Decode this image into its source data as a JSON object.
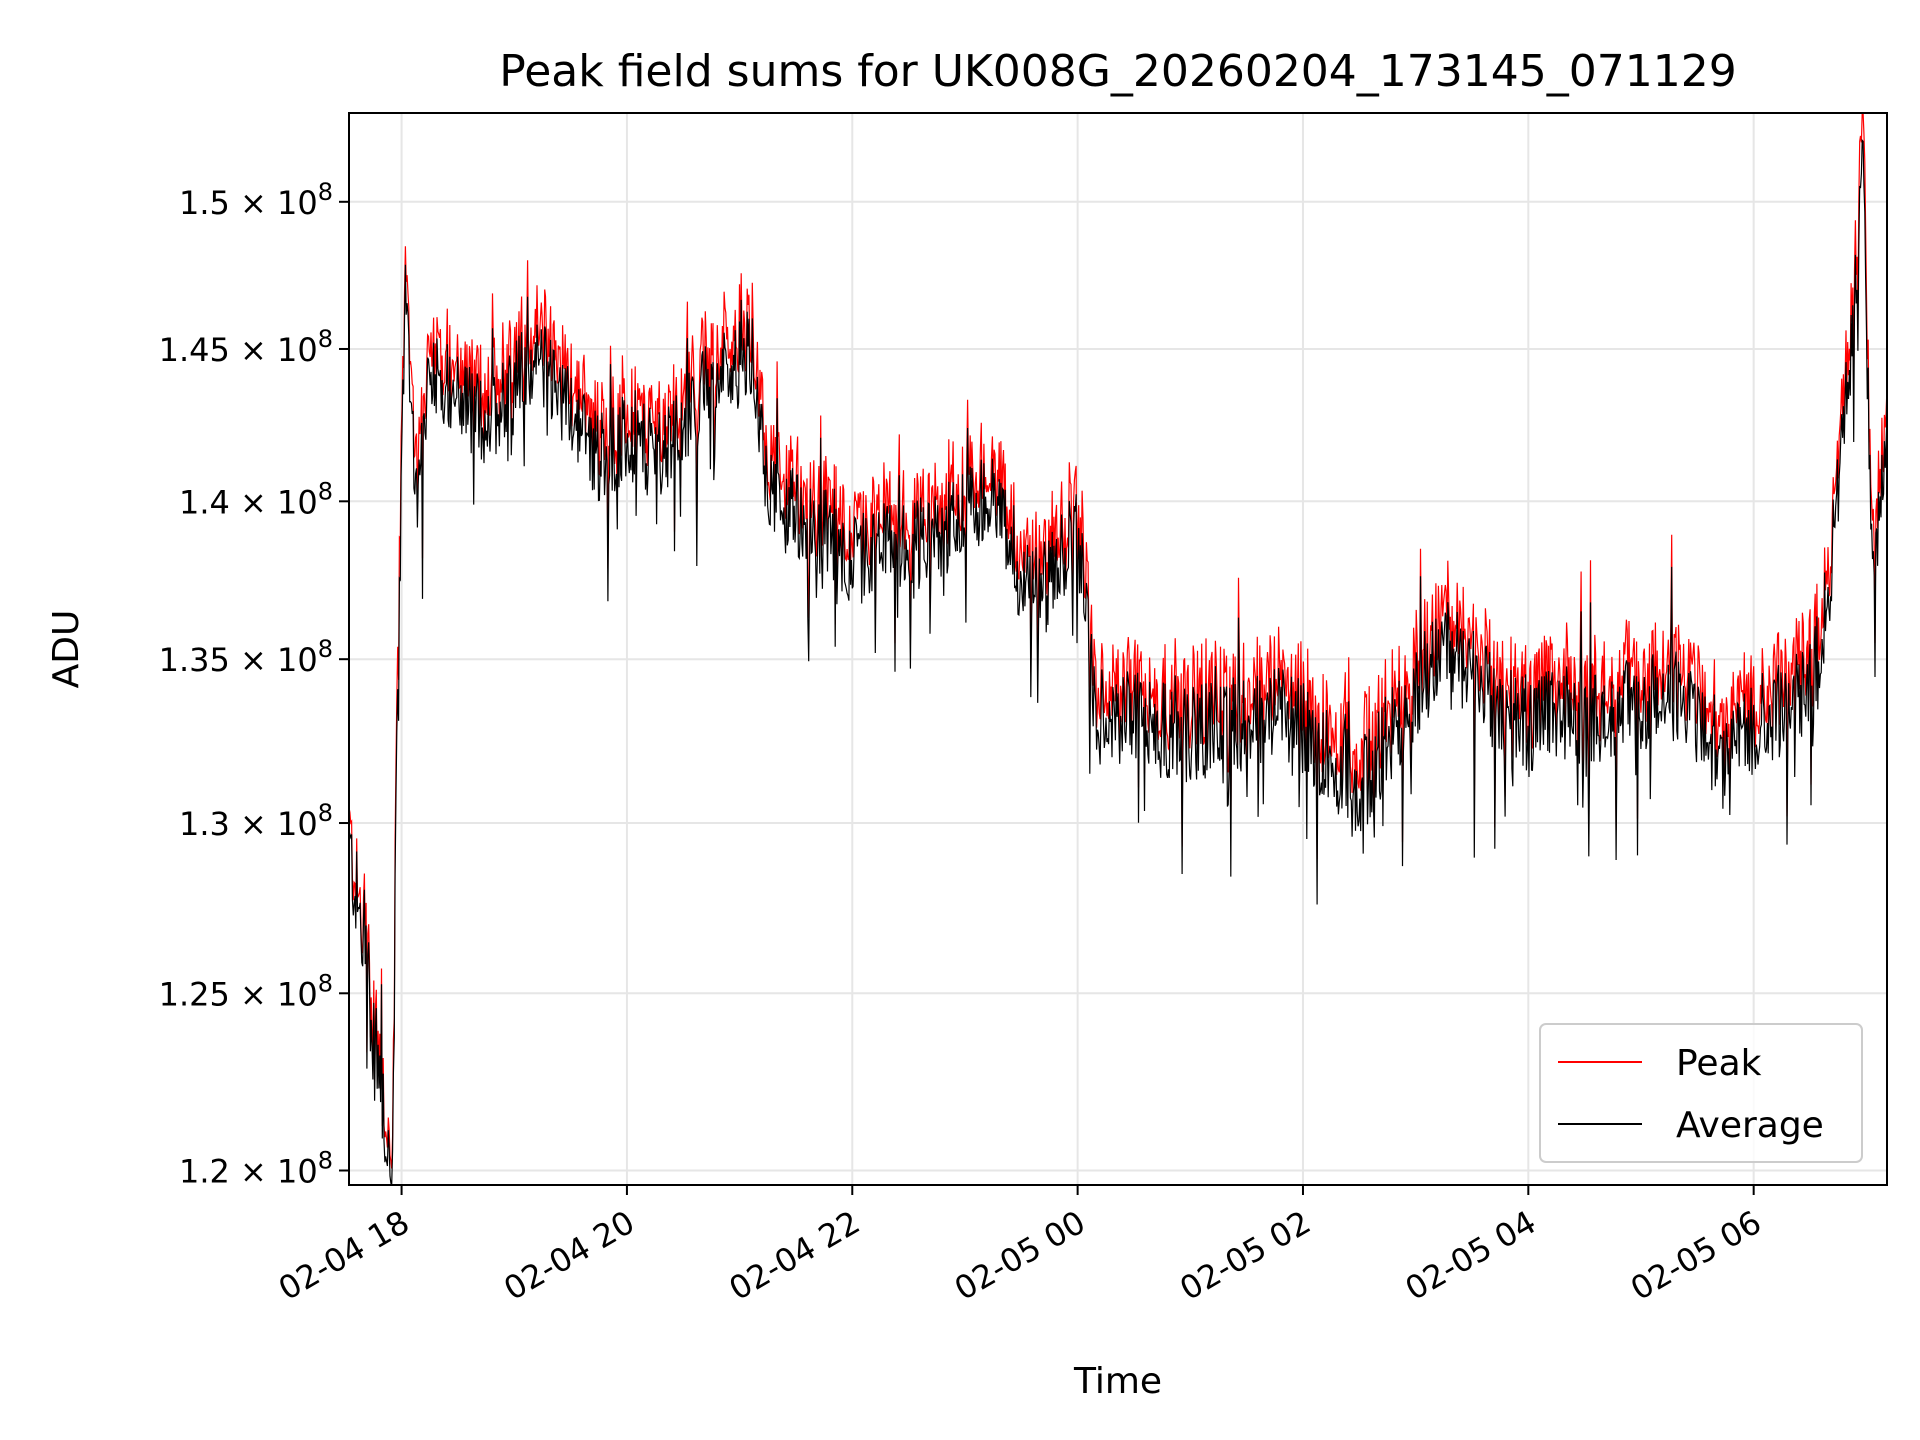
{
  "chart_data": {
    "type": "line",
    "title": "Peak field sums for UK008G_20260204_173145_071129",
    "xlabel": "Time",
    "ylabel": "ADU",
    "y_scale": "log",
    "xlim": [
      "2026-02-04T17:32",
      "2026-02-05T07:11"
    ],
    "ylim": [
      119600000,
      153100000
    ],
    "x_ticks": [
      "2026-02-04T18:00",
      "2026-02-04T20:00",
      "2026-02-04T22:00",
      "2026-02-05T00:00",
      "2026-02-05T02:00",
      "2026-02-05T04:00",
      "2026-02-05T06:00"
    ],
    "x_tick_labels": [
      "02-04 18",
      "02-04 20",
      "02-04 22",
      "02-05 00",
      "02-05 02",
      "02-05 04",
      "02-05 06"
    ],
    "y_ticks": [
      120000000,
      125000000,
      130000000,
      135000000,
      140000000,
      145000000,
      150000000
    ],
    "y_tick_labels": [
      {
        "mantissa": "1.2",
        "exponent": "8"
      },
      {
        "mantissa": "1.25",
        "exponent": "8"
      },
      {
        "mantissa": "1.3",
        "exponent": "8"
      },
      {
        "mantissa": "1.35",
        "exponent": "8"
      },
      {
        "mantissa": "1.4",
        "exponent": "8"
      },
      {
        "mantissa": "1.45",
        "exponent": "8"
      },
      {
        "mantissa": "1.5",
        "exponent": "8"
      }
    ],
    "grid": true,
    "legend_position": "lower-right",
    "series": [
      {
        "name": "Peak",
        "color": "#ff0000",
        "x": [
          "2026-02-04T17:32",
          "2026-02-04T17:38",
          "2026-02-04T17:44",
          "2026-02-04T17:50",
          "2026-02-04T17:53",
          "2026-02-04T17:55",
          "2026-02-04T17:58",
          "2026-02-04T18:02",
          "2026-02-04T18:08",
          "2026-02-04T18:15",
          "2026-02-04T18:30",
          "2026-02-04T18:45",
          "2026-02-04T19:00",
          "2026-02-04T19:15",
          "2026-02-04T19:30",
          "2026-02-04T19:45",
          "2026-02-04T20:00",
          "2026-02-04T20:15",
          "2026-02-04T20:30",
          "2026-02-04T20:45",
          "2026-02-04T21:00",
          "2026-02-04T21:07",
          "2026-02-04T21:15",
          "2026-02-04T21:30",
          "2026-02-04T21:45",
          "2026-02-04T22:00",
          "2026-02-04T22:15",
          "2026-02-04T22:30",
          "2026-02-04T22:45",
          "2026-02-04T23:00",
          "2026-02-04T23:15",
          "2026-02-04T23:30",
          "2026-02-04T23:45",
          "2026-02-05T00:00",
          "2026-02-05T00:05",
          "2026-02-05T00:10",
          "2026-02-05T00:15",
          "2026-02-05T00:30",
          "2026-02-05T00:45",
          "2026-02-05T01:00",
          "2026-02-05T01:15",
          "2026-02-05T01:30",
          "2026-02-05T01:45",
          "2026-02-05T02:00",
          "2026-02-05T02:15",
          "2026-02-05T02:30",
          "2026-02-05T02:45",
          "2026-02-05T03:00",
          "2026-02-05T03:15",
          "2026-02-05T03:30",
          "2026-02-05T03:45",
          "2026-02-05T04:00",
          "2026-02-05T04:15",
          "2026-02-05T04:30",
          "2026-02-05T04:45",
          "2026-02-05T05:00",
          "2026-02-05T05:15",
          "2026-02-05T05:30",
          "2026-02-05T05:45",
          "2026-02-05T06:00",
          "2026-02-05T06:15",
          "2026-02-05T06:30",
          "2026-02-05T06:40",
          "2026-02-05T06:48",
          "2026-02-05T06:53",
          "2026-02-05T06:58",
          "2026-02-05T07:03",
          "2026-02-05T07:08",
          "2026-02-05T07:11"
        ],
        "values": [
          129800000,
          127500000,
          124800000,
          122500000,
          121000000,
          120500000,
          135000000,
          148500000,
          141000000,
          145500000,
          144500000,
          143500000,
          145000000,
          145500000,
          144000000,
          142500000,
          143000000,
          142500000,
          143500000,
          145000000,
          145500000,
          146000000,
          141500000,
          140500000,
          140000000,
          139000000,
          139500000,
          139500000,
          140000000,
          140500000,
          141500000,
          138000000,
          138500000,
          140000000,
          137000000,
          134500000,
          133500000,
          134500000,
          133800000,
          133700000,
          134000000,
          134000000,
          134500000,
          133800000,
          133000000,
          132000000,
          133500000,
          135000000,
          136500000,
          135500000,
          134500000,
          134000000,
          134500000,
          134000000,
          134500000,
          134500000,
          135000000,
          134500000,
          133000000,
          134000000,
          134500000,
          135000000,
          138000000,
          144000000,
          146500000,
          153000000,
          138500000,
          141000000,
          142500000
        ]
      },
      {
        "name": "Average",
        "color": "#000000",
        "x": [
          "2026-02-04T17:32",
          "2026-02-04T17:38",
          "2026-02-04T17:44",
          "2026-02-04T17:50",
          "2026-02-04T17:53",
          "2026-02-04T17:55",
          "2026-02-04T17:58",
          "2026-02-04T18:02",
          "2026-02-04T18:08",
          "2026-02-04T18:15",
          "2026-02-04T18:30",
          "2026-02-04T18:45",
          "2026-02-04T19:00",
          "2026-02-04T19:15",
          "2026-02-04T19:30",
          "2026-02-04T19:45",
          "2026-02-04T20:00",
          "2026-02-04T20:15",
          "2026-02-04T20:30",
          "2026-02-04T20:45",
          "2026-02-04T21:00",
          "2026-02-04T21:07",
          "2026-02-04T21:15",
          "2026-02-04T21:30",
          "2026-02-04T21:45",
          "2026-02-04T22:00",
          "2026-02-04T22:15",
          "2026-02-04T22:30",
          "2026-02-04T22:45",
          "2026-02-04T23:00",
          "2026-02-04T23:15",
          "2026-02-04T23:30",
          "2026-02-04T23:45",
          "2026-02-05T00:00",
          "2026-02-05T00:05",
          "2026-02-05T00:10",
          "2026-02-05T00:15",
          "2026-02-05T00:30",
          "2026-02-05T00:45",
          "2026-02-05T01:00",
          "2026-02-05T01:15",
          "2026-02-05T01:30",
          "2026-02-05T01:45",
          "2026-02-05T02:00",
          "2026-02-05T02:15",
          "2026-02-05T02:30",
          "2026-02-05T02:45",
          "2026-02-05T03:00",
          "2026-02-05T03:15",
          "2026-02-05T03:30",
          "2026-02-05T03:45",
          "2026-02-05T04:00",
          "2026-02-05T04:15",
          "2026-02-05T04:30",
          "2026-02-05T04:45",
          "2026-02-05T05:00",
          "2026-02-05T05:15",
          "2026-02-05T05:30",
          "2026-02-05T05:45",
          "2026-02-05T06:00",
          "2026-02-05T06:15",
          "2026-02-05T06:30",
          "2026-02-05T06:40",
          "2026-02-05T06:48",
          "2026-02-05T06:53",
          "2026-02-05T06:58",
          "2026-02-05T07:03",
          "2026-02-05T07:08",
          "2026-02-05T07:11"
        ],
        "values": [
          129300000,
          127000000,
          124300000,
          122000000,
          120500000,
          119900000,
          134000000,
          147500000,
          140000000,
          144500000,
          143500000,
          142500000,
          144000000,
          144500000,
          143000000,
          141500000,
          142000000,
          141500000,
          142500000,
          144000000,
          144500000,
          145000000,
          140500000,
          139500000,
          139000000,
          138000000,
          138500000,
          138500000,
          139000000,
          139500000,
          140500000,
          137000000,
          137500000,
          139000000,
          136000000,
          133500000,
          132500000,
          133500000,
          132800000,
          132700000,
          133000000,
          133000000,
          133500000,
          132800000,
          132000000,
          131000000,
          132500000,
          134000000,
          135500000,
          134500000,
          133500000,
          133000000,
          133500000,
          133000000,
          133500000,
          133500000,
          134000000,
          133500000,
          132000000,
          133000000,
          133500000,
          134000000,
          137000000,
          143000000,
          145500000,
          151500000,
          137500000,
          140000000,
          141500000
        ]
      }
    ]
  }
}
